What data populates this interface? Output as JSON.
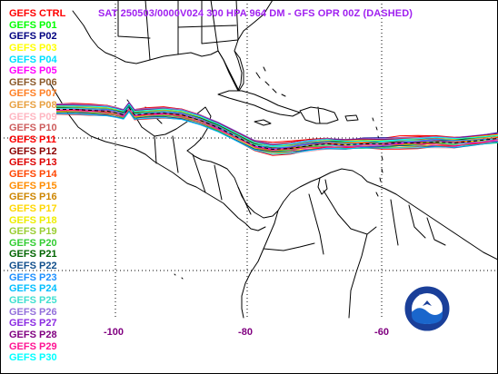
{
  "title": "SAT 250503/0000V024  300 HPA 964 DM - GFS OPR 00Z (DASHED)",
  "legend": [
    {
      "label": "GEFS CTRL",
      "color": "#ff0000"
    },
    {
      "label": "GEFS P01",
      "color": "#00ff00"
    },
    {
      "label": "GEFS P02",
      "color": "#000080"
    },
    {
      "label": "GEFS P03",
      "color": "#ffff00"
    },
    {
      "label": "GEFS P04",
      "color": "#00e0ff"
    },
    {
      "label": "GEFS P05",
      "color": "#ff00ff"
    },
    {
      "label": "GEFS P06",
      "color": "#8b5a2b"
    },
    {
      "label": "GEFS P07",
      "color": "#ff7f24"
    },
    {
      "label": "GEFS P08",
      "color": "#e8a040"
    },
    {
      "label": "GEFS P09",
      "color": "#ffb6c1"
    },
    {
      "label": "GEFS P10",
      "color": "#cd5c5c"
    },
    {
      "label": "GEFS P11",
      "color": "#ff0000"
    },
    {
      "label": "GEFS P12",
      "color": "#8b0000"
    },
    {
      "label": "GEFS P13",
      "color": "#dd0000"
    },
    {
      "label": "GEFS P14",
      "color": "#ff4500"
    },
    {
      "label": "GEFS P15",
      "color": "#ff8c00"
    },
    {
      "label": "GEFS P16",
      "color": "#cd8500"
    },
    {
      "label": "GEFS P17",
      "color": "#ffd700"
    },
    {
      "label": "GEFS P18",
      "color": "#eeee00"
    },
    {
      "label": "GEFS P19",
      "color": "#9acd32"
    },
    {
      "label": "GEFS P20",
      "color": "#32cd32"
    },
    {
      "label": "GEFS P21",
      "color": "#006400"
    },
    {
      "label": "GEFS P22",
      "color": "#104e8b"
    },
    {
      "label": "GEFS P23",
      "color": "#1e90ff"
    },
    {
      "label": "GEFS P24",
      "color": "#00bfff"
    },
    {
      "label": "GEFS P25",
      "color": "#40e0d0"
    },
    {
      "label": "GEFS P26",
      "color": "#9370db"
    },
    {
      "label": "GEFS P27",
      "color": "#8a2be2"
    },
    {
      "label": "GEFS P28",
      "color": "#800080"
    },
    {
      "label": "GEFS P29",
      "color": "#ff1493"
    },
    {
      "label": "GEFS P30",
      "color": "#00ffff"
    }
  ],
  "longitude_labels": [
    "-100",
    "-80",
    "-60"
  ],
  "noaa_logo": {
    "text": "NOAA",
    "icon": "noaa-logo-icon"
  }
}
